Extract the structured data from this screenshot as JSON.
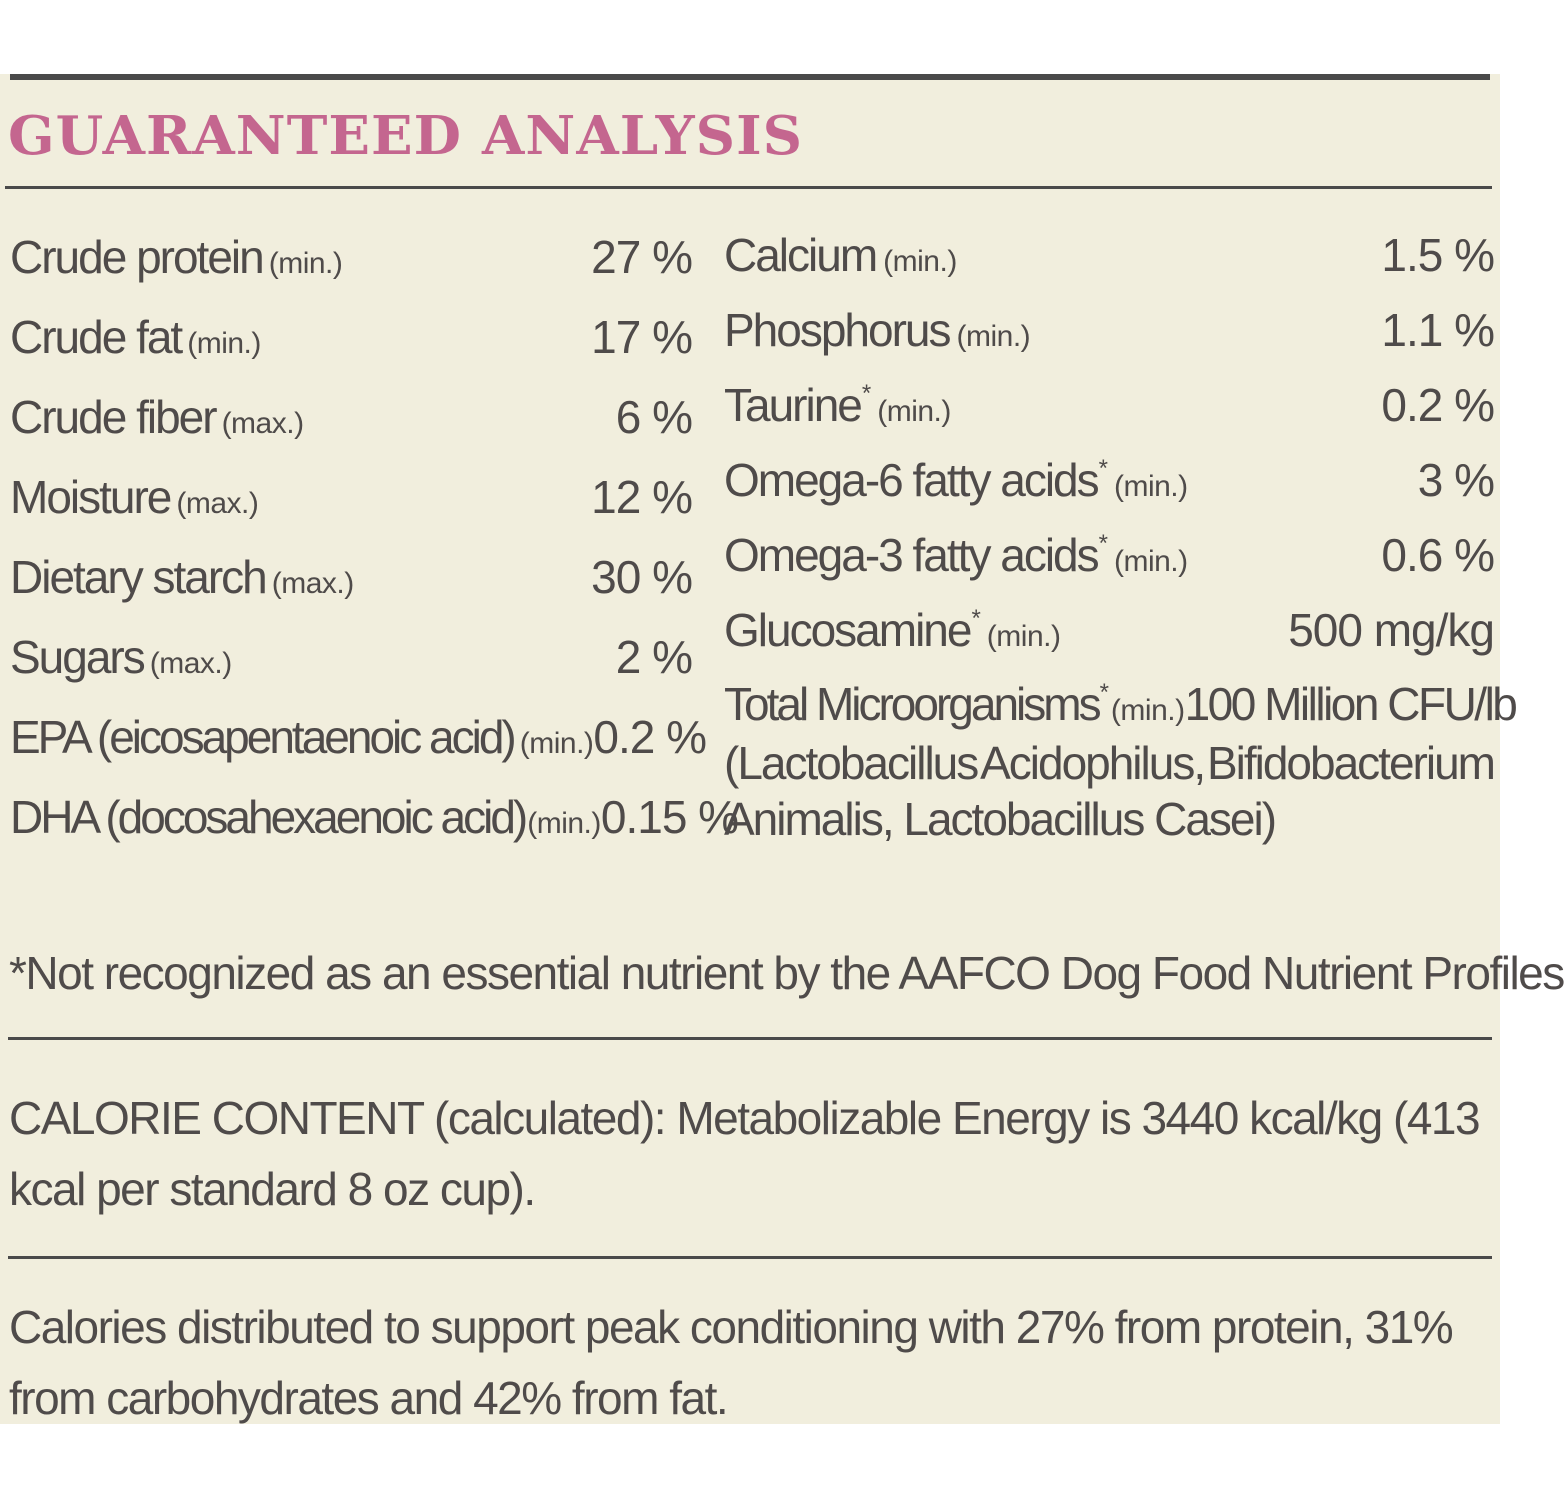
{
  "title": "GUARANTEED ANALYSIS",
  "left_items": [
    {
      "name": "Crude protein",
      "qualifier": "(min.)",
      "value": "27 %"
    },
    {
      "name": "Crude fat",
      "qualifier": "(min.)",
      "value": "17 %"
    },
    {
      "name": "Crude fiber",
      "qualifier": "(max.)",
      "value": "6 %"
    },
    {
      "name": "Moisture",
      "qualifier": "(max.)",
      "value": "12 %"
    },
    {
      "name": "Dietary starch",
      "qualifier": "(max.)",
      "value": "30 %"
    },
    {
      "name": "Sugars",
      "qualifier": "(max.)",
      "value": "2 %"
    },
    {
      "name": "EPA (eicosapentaenoic acid)",
      "qualifier": "(min.)",
      "value": "0.2 %"
    },
    {
      "name": "DHA (docosahexaenoic acid)",
      "qualifier": "(min.)",
      "value": "0.15 %"
    }
  ],
  "right_items": [
    {
      "name": "Calcium",
      "asterisk": "",
      "qualifier": "(min.)",
      "value": "1.5 %"
    },
    {
      "name": "Phosphorus",
      "asterisk": "",
      "qualifier": "(min.)",
      "value": "1.1 %"
    },
    {
      "name": "Taurine",
      "asterisk": "*",
      "qualifier": "(min.)",
      "value": "0.2 %"
    },
    {
      "name": "Omega-6 fatty acids",
      "asterisk": "*",
      "qualifier": "(min.)",
      "value": "3 %"
    },
    {
      "name": "Omega-3 fatty acids",
      "asterisk": "*",
      "qualifier": "(min.)",
      "value": "0.6 %"
    },
    {
      "name": "Glucosamine",
      "asterisk": "*",
      "qualifier": "(min.)",
      "value": "500 mg/kg"
    },
    {
      "name": "Total Microorganisms",
      "asterisk": "*",
      "qualifier": "(min.)",
      "value": "100 Million CFU/lb"
    }
  ],
  "microorganisms_detail": {
    "line1_a": "(Lactobacillus",
    "line1_b": "Acidophilus,",
    "line1_c": "Bifidobacterium",
    "line2": "Animalis, Lactobacillus Casei)"
  },
  "footnote": "*Not recognized as an essential nutrient by the AAFCO Dog Food Nutrient Profiles",
  "calorie_content": "CALORIE CONTENT (calculated): Metabolizable Energy is 3440 kcal/kg (413 kcal per standard 8 oz cup).",
  "calorie_distribution": "Calories distributed to support peak conditioning with 27% from protein, 31% from carbohydrates and 42% from fat.",
  "colors": {
    "title": "#c4668f",
    "background": "#f1eedd",
    "text": "#4f4b4a",
    "rule": "#4a4a4a"
  }
}
